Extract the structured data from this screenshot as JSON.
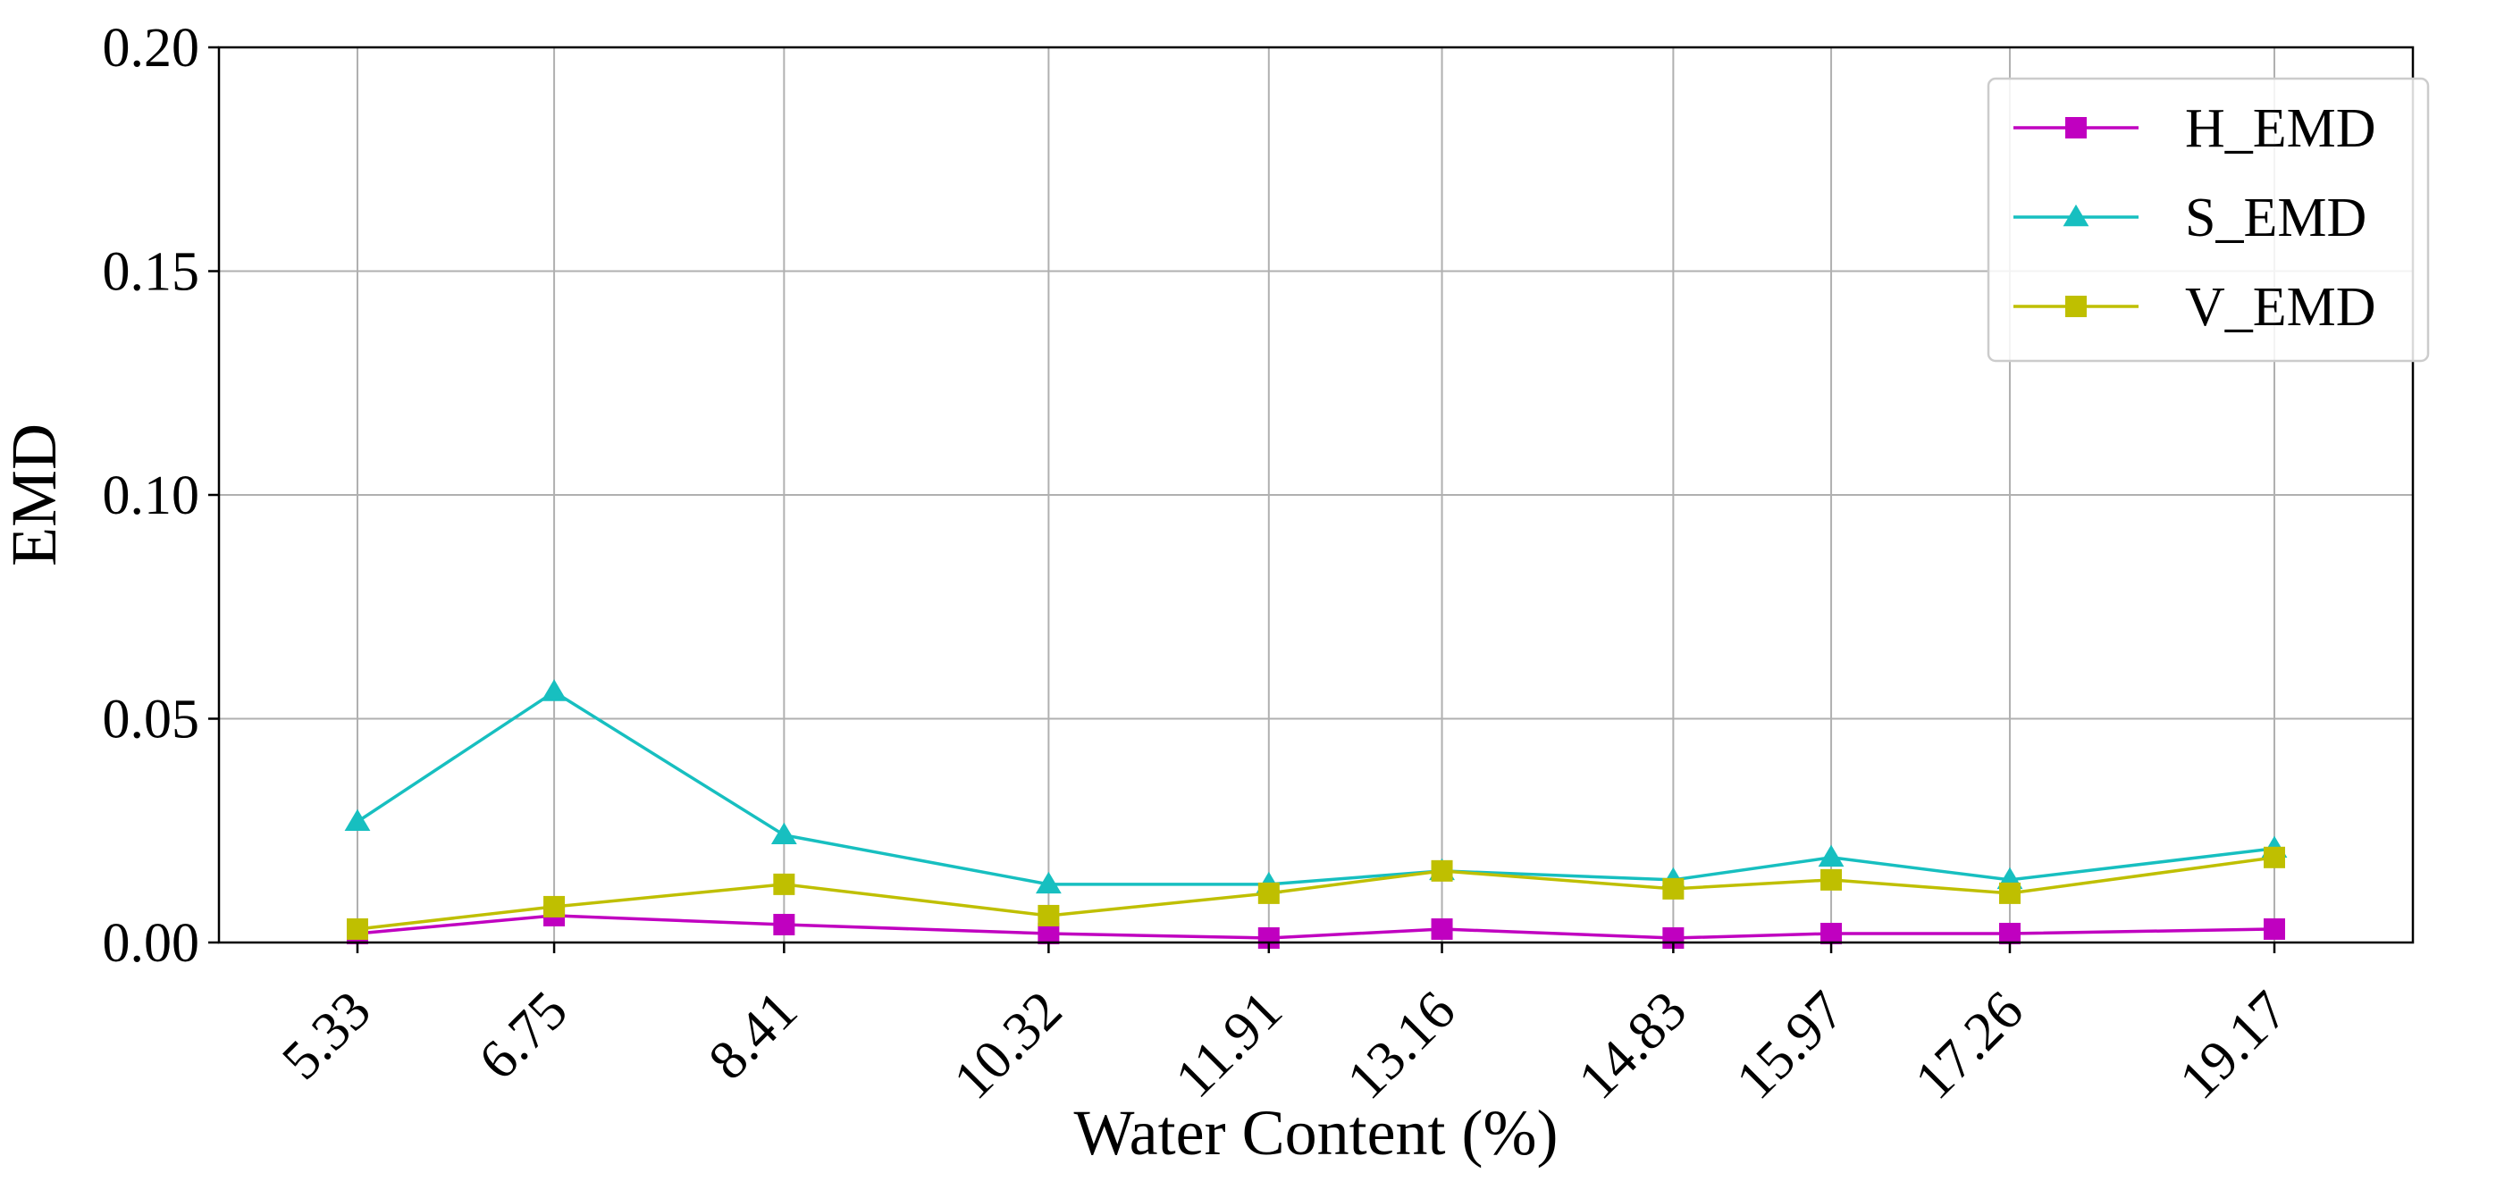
{
  "chart_data": {
    "type": "line",
    "title": "",
    "xlabel": "Water Content (%)",
    "ylabel": "EMD",
    "x": [
      5.33,
      6.75,
      8.41,
      10.32,
      11.91,
      13.16,
      14.83,
      15.97,
      17.26,
      19.17
    ],
    "x_tick_labels": [
      "5.33",
      "6.75",
      "8.41",
      "10.32",
      "11.91",
      "13.16",
      "14.83",
      "15.97",
      "17.26",
      "19.17"
    ],
    "xlim": [
      4.33,
      20.17
    ],
    "ylim": [
      0.0,
      0.2
    ],
    "y_ticks": [
      0.0,
      0.05,
      0.1,
      0.15,
      0.2
    ],
    "y_tick_labels": [
      "0.00",
      "0.05",
      "0.10",
      "0.15",
      "0.20"
    ],
    "grid": true,
    "legend_position": "top-right",
    "series": [
      {
        "name": "H_EMD",
        "color": "#c000c0",
        "marker": "square",
        "values": [
          0.002,
          0.006,
          0.004,
          0.002,
          0.001,
          0.003,
          0.001,
          0.002,
          0.002,
          0.003
        ]
      },
      {
        "name": "S_EMD",
        "color": "#17bfc0",
        "marker": "triangle",
        "values": [
          0.027,
          0.056,
          0.024,
          0.013,
          0.013,
          0.016,
          0.014,
          0.019,
          0.014,
          0.021
        ]
      },
      {
        "name": "V_EMD",
        "color": "#bfbf00",
        "marker": "square",
        "values": [
          0.003,
          0.008,
          0.013,
          0.006,
          0.011,
          0.016,
          0.012,
          0.014,
          0.011,
          0.019
        ]
      }
    ]
  }
}
